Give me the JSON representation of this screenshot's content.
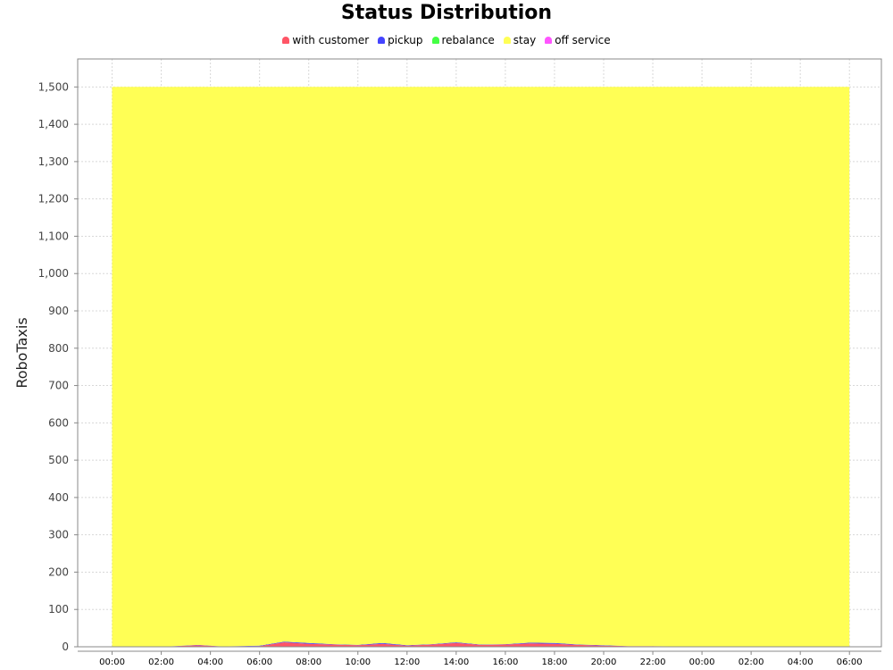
{
  "chart_data": {
    "type": "area",
    "stacked": true,
    "title": "Status Distribution",
    "xlabel": "",
    "ylabel": "RoboTaxis",
    "ylim": [
      0,
      1575
    ],
    "yticks": [
      0,
      100,
      200,
      300,
      400,
      500,
      600,
      700,
      800,
      900,
      1000,
      1100,
      1200,
      1300,
      1400,
      1500
    ],
    "ytick_labels": [
      "0",
      "100",
      "200",
      "300",
      "400",
      "500",
      "600",
      "700",
      "800",
      "900",
      "1,000",
      "1,100",
      "1,200",
      "1,300",
      "1,400",
      "1,500"
    ],
    "xlim": [
      -1.4,
      31.3
    ],
    "xticks": [
      0,
      2,
      4,
      6,
      8,
      10,
      12,
      14,
      16,
      18,
      20,
      22,
      24,
      26,
      28,
      30
    ],
    "xtick_labels": [
      "00:00",
      "02:00",
      "04:00",
      "06:00",
      "08:00",
      "10:00",
      "12:00",
      "14:00",
      "16:00",
      "18:00",
      "20:00",
      "22:00",
      "00:00",
      "02:00",
      "04:00",
      "06:00"
    ],
    "grid": true,
    "legend_position": "top",
    "x": [
      0,
      2,
      3.5,
      4.5,
      6,
      7,
      8,
      9,
      10,
      11,
      12,
      13,
      14,
      15,
      16,
      17,
      18,
      19,
      20,
      21,
      22,
      23,
      24,
      26,
      28,
      30
    ],
    "series": [
      {
        "name": "with customer",
        "color": "#ff5566",
        "values": [
          0,
          0,
          4,
          1,
          2,
          12,
          8,
          6,
          4,
          8,
          3,
          6,
          10,
          5,
          6,
          9,
          8,
          5,
          3,
          2,
          2,
          1,
          0,
          0,
          0,
          0
        ]
      },
      {
        "name": "pickup",
        "color": "#4444ff",
        "values": [
          0,
          0,
          1,
          0,
          1,
          2,
          2,
          1,
          1,
          2,
          1,
          1,
          2,
          1,
          1,
          2,
          2,
          1,
          1,
          0,
          0,
          0,
          0,
          0,
          0,
          0
        ]
      },
      {
        "name": "rebalance",
        "color": "#44ff44",
        "values": [
          0,
          0,
          0,
          0,
          0,
          0,
          0,
          0,
          0,
          0,
          0,
          0,
          0,
          0,
          0,
          0,
          0,
          0,
          0,
          0,
          0,
          0,
          0,
          0,
          0,
          0
        ]
      },
      {
        "name": "stay",
        "color": "#ffff55",
        "values": [
          1500,
          1500,
          1495,
          1499,
          1497,
          1486,
          1490,
          1493,
          1495,
          1490,
          1496,
          1493,
          1488,
          1494,
          1493,
          1489,
          1490,
          1494,
          1496,
          1498,
          1498,
          1499,
          1500,
          1500,
          1500,
          1500
        ]
      },
      {
        "name": "off service",
        "color": "#ff55ff",
        "values": [
          0,
          0,
          0,
          0,
          0,
          0,
          0,
          0,
          0,
          0,
          0,
          0,
          0,
          0,
          0,
          0,
          0,
          0,
          0,
          0,
          0,
          0,
          0,
          0,
          0,
          0
        ]
      }
    ]
  }
}
